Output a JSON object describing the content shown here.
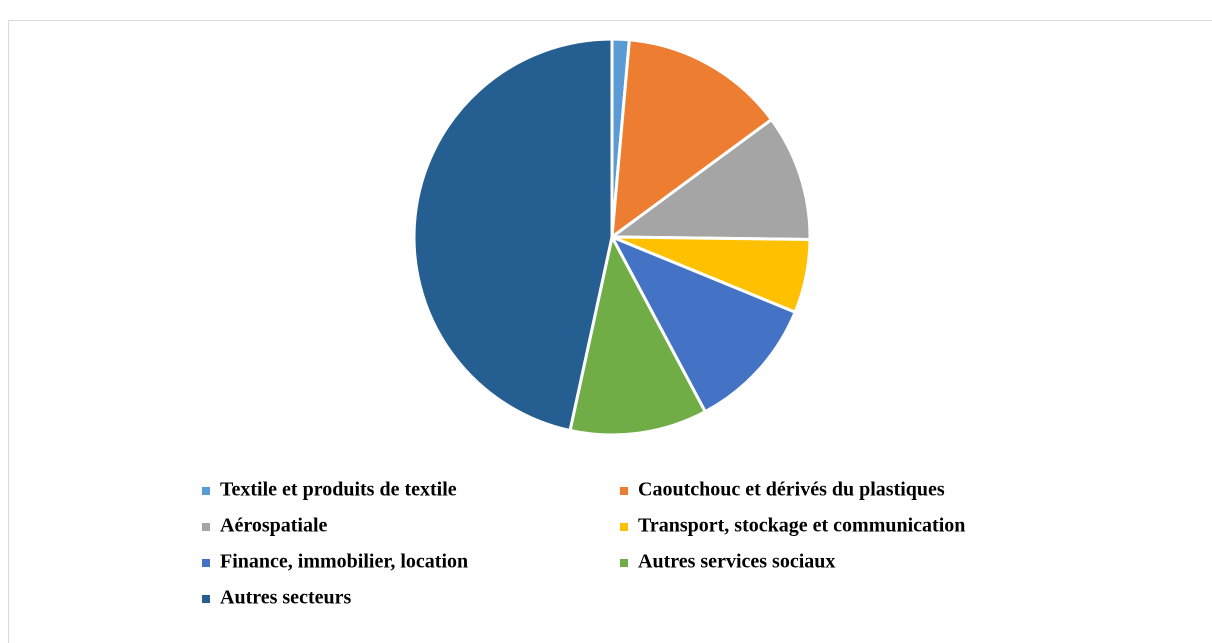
{
  "chart_data": {
    "type": "pie",
    "categories": [
      "Textile et produits de textile",
      "Caoutchouc et dérivés du plastiques",
      "Aérospatiale",
      "Transport, stockage et communication",
      "Finance, immobilier, location",
      "Autres services sociaux",
      "Autres secteurs"
    ],
    "values": [
      1.4,
      13.5,
      10.3,
      6,
      11,
      11.2,
      46.6
    ],
    "colors": [
      "#5b9bd5",
      "#ed7d31",
      "#a5a5a5",
      "#ffc000",
      "#4472c4",
      "#70ad47",
      "#255e91"
    ],
    "legend": "bottom"
  }
}
